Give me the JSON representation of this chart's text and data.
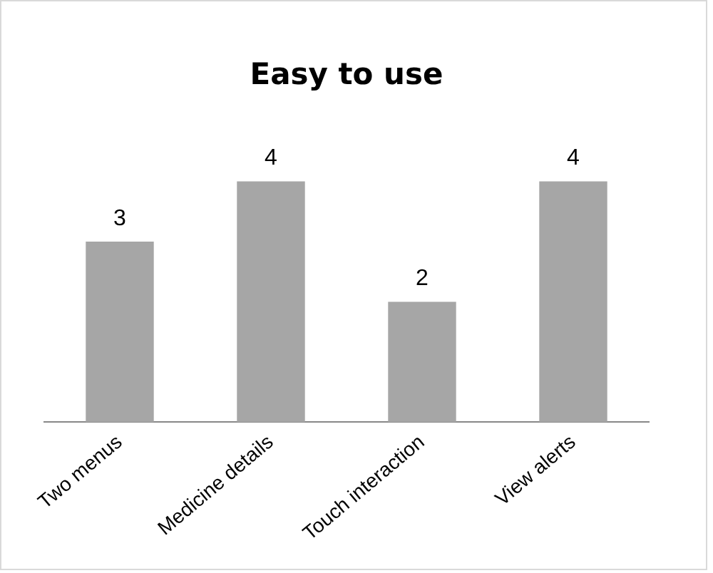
{
  "chart_data": {
    "type": "bar",
    "title": "Easy to use",
    "categories": [
      "Two menus",
      "Medicine details",
      "Touch interaction",
      "View alerts"
    ],
    "values": [
      3,
      4,
      2,
      4
    ],
    "color": "#a6a6a6",
    "data_labels": true,
    "grid": false,
    "legend": false
  }
}
